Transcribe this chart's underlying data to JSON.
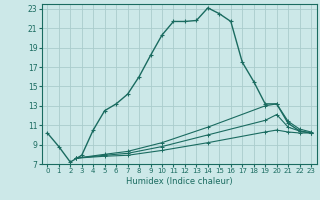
{
  "xlabel": "Humidex (Indice chaleur)",
  "bg_color": "#cce8e8",
  "grid_color": "#aacccc",
  "line_color": "#1a6b60",
  "xlim": [
    -0.5,
    23.5
  ],
  "ylim": [
    7,
    23.5
  ],
  "xticks": [
    0,
    1,
    2,
    3,
    4,
    5,
    6,
    7,
    8,
    9,
    10,
    11,
    12,
    13,
    14,
    15,
    16,
    17,
    18,
    19,
    20,
    21,
    22,
    23
  ],
  "yticks": [
    7,
    9,
    11,
    13,
    15,
    17,
    19,
    21,
    23
  ],
  "curve1_x": [
    0,
    1,
    2,
    3,
    4,
    5,
    6,
    7,
    8,
    9,
    10,
    11,
    12,
    13,
    14,
    15,
    16,
    17,
    18,
    19,
    20,
    21,
    22,
    23
  ],
  "curve1_y": [
    10.2,
    8.8,
    7.2,
    7.9,
    10.5,
    12.5,
    13.2,
    14.2,
    16.0,
    18.2,
    20.3,
    21.7,
    21.7,
    21.8,
    23.1,
    22.5,
    21.7,
    17.5,
    15.5,
    13.2,
    13.2,
    11.2,
    10.4,
    10.2
  ],
  "curve2_x": [
    2.5,
    5,
    7,
    10,
    14,
    19,
    20,
    21,
    22,
    23
  ],
  "curve2_y": [
    7.6,
    7.8,
    7.9,
    8.4,
    9.2,
    10.3,
    10.5,
    10.3,
    10.2,
    10.2
  ],
  "curve3_x": [
    2.5,
    5,
    7,
    10,
    14,
    19,
    20,
    21,
    22,
    23
  ],
  "curve3_y": [
    7.6,
    7.9,
    8.1,
    8.8,
    10.0,
    11.5,
    12.1,
    10.8,
    10.4,
    10.2
  ],
  "curve4_x": [
    2.5,
    5,
    7,
    10,
    14,
    19,
    20,
    21,
    22,
    23
  ],
  "curve4_y": [
    7.6,
    8.0,
    8.3,
    9.2,
    10.8,
    13.0,
    13.2,
    11.4,
    10.6,
    10.3
  ]
}
